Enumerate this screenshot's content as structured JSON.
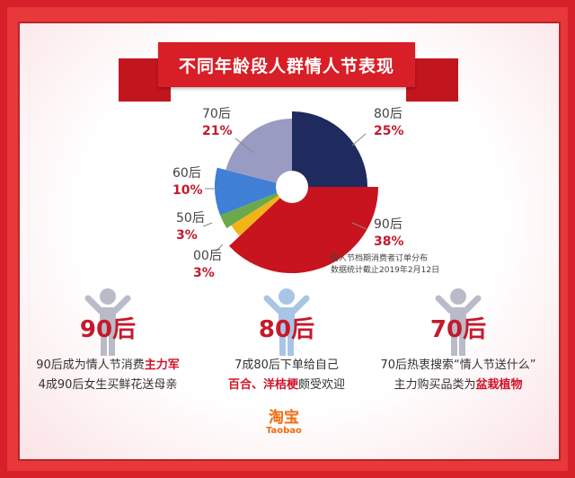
{
  "title": "不同年龄段人群情人节表现",
  "chart_data": {
    "type": "pie",
    "title": "不同年龄段人群情人节表现",
    "categories": [
      "80后",
      "90后",
      "00后",
      "50后",
      "60后",
      "70后"
    ],
    "values": [
      25,
      38,
      3,
      3,
      10,
      21
    ],
    "labels": [
      "25%",
      "38%",
      "3%",
      "3%",
      "10%",
      "21%"
    ],
    "colors": [
      "#1f2a5e",
      "#c8141f",
      "#f2b418",
      "#6aaa4c",
      "#3f7fd6",
      "#9a9bc2"
    ],
    "note": [
      "情人节档期消费者订单分布",
      "数据统计截止2019年2月12日"
    ]
  },
  "columns": [
    {
      "gen": "90后",
      "icon_color": "#b9bcc8",
      "line1": "90后成为情人节消费",
      "line1_hl": "主力军",
      "line2": "4成90后女生买鲜花送母亲",
      "line2_hl": "",
      "line2_rest": ""
    },
    {
      "gen": "80后",
      "icon_color": "#a9c5e6",
      "line1": "7成80后下单给自己",
      "line1_hl": "",
      "line2": "",
      "line2_hl": "百合、洋桔梗",
      "line2_rest": "颇受欢迎"
    },
    {
      "gen": "70后",
      "icon_color": "#b9bcc8",
      "line1": "70后热衷搜索“情人节送什么”",
      "line1_hl": "",
      "line2": "主力购买品类为",
      "line2_hl": "盆栽植物",
      "line2_rest": ""
    }
  ],
  "logo": {
    "cn": "淘宝",
    "en": "Taobao"
  }
}
